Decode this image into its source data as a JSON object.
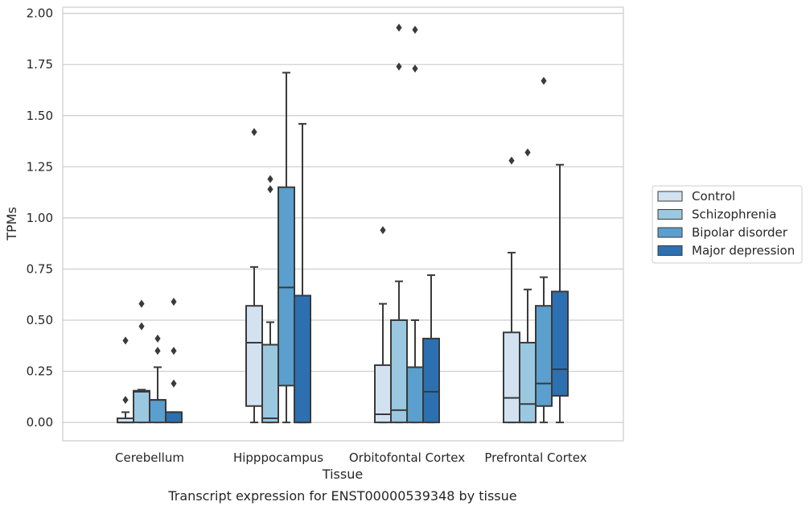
{
  "chart_data": {
    "type": "box",
    "title": "",
    "xlabel": "Tissue",
    "ylabel": "TPMs",
    "caption": "Transcript expression for ENST00000539348 by tissue",
    "ylim": [
      -0.09,
      2.03
    ],
    "yticks": [
      "0.00",
      "0.25",
      "0.50",
      "0.75",
      "1.00",
      "1.25",
      "1.50",
      "1.75",
      "2.00"
    ],
    "ytick_values": [
      0,
      0.25,
      0.5,
      0.75,
      1.0,
      1.25,
      1.5,
      1.75,
      2.0
    ],
    "grid": "horizontal",
    "legend_position": "right",
    "categories": [
      "Cerebellum",
      "Hipppocampus",
      "Orbitofontal Cortex",
      "Prefrontal Cortex"
    ],
    "series": [
      {
        "name": "Control",
        "color": "#d2e2f1",
        "boxes": [
          {
            "whisker_low": 0,
            "q1": 0,
            "median": 0.0,
            "q3": 0.02,
            "whisker_high": 0.05,
            "outliers": [
              0.11,
              0.4
            ]
          },
          {
            "whisker_low": 0,
            "q1": 0.08,
            "median": 0.39,
            "q3": 0.57,
            "whisker_high": 0.76,
            "outliers": [
              1.42
            ]
          },
          {
            "whisker_low": 0,
            "q1": 0,
            "median": 0.04,
            "q3": 0.28,
            "whisker_high": 0.58,
            "outliers": [
              0.94
            ]
          },
          {
            "whisker_low": 0,
            "q1": 0,
            "median": 0.12,
            "q3": 0.44,
            "whisker_high": 0.83,
            "outliers": [
              1.28
            ]
          }
        ]
      },
      {
        "name": "Schizophrenia",
        "color": "#9ac8e0",
        "boxes": [
          {
            "whisker_low": 0,
            "q1": 0,
            "median": 0.15,
            "q3": 0.155,
            "whisker_high": 0.16,
            "outliers": [
              0.47,
              0.58
            ]
          },
          {
            "whisker_low": 0,
            "q1": 0,
            "median": 0.02,
            "q3": 0.38,
            "whisker_high": 0.49,
            "outliers": [
              1.14,
              1.19
            ]
          },
          {
            "whisker_low": 0,
            "q1": 0,
            "median": 0.06,
            "q3": 0.5,
            "whisker_high": 0.69,
            "outliers": [
              1.74,
              1.93
            ]
          },
          {
            "whisker_low": 0,
            "q1": 0,
            "median": 0.09,
            "q3": 0.39,
            "whisker_high": 0.65,
            "outliers": [
              1.32
            ]
          }
        ]
      },
      {
        "name": "Bipolar disorder",
        "color": "#5a9fcd",
        "boxes": [
          {
            "whisker_low": 0,
            "q1": 0,
            "median": 0.11,
            "q3": 0.11,
            "whisker_high": 0.27,
            "outliers": [
              0.35,
              0.41
            ]
          },
          {
            "whisker_low": 0,
            "q1": 0.18,
            "median": 0.66,
            "q3": 1.15,
            "whisker_high": 1.71,
            "outliers": []
          },
          {
            "whisker_low": 0,
            "q1": 0,
            "median": 0.27,
            "q3": 0.27,
            "whisker_high": 0.5,
            "outliers": [
              1.73,
              1.92
            ]
          },
          {
            "whisker_low": 0,
            "q1": 0.08,
            "median": 0.19,
            "q3": 0.57,
            "whisker_high": 0.71,
            "outliers": [
              1.67
            ]
          }
        ]
      },
      {
        "name": "Major depression",
        "color": "#2c70b1",
        "boxes": [
          {
            "whisker_low": 0,
            "q1": 0,
            "median": 0.05,
            "q3": 0.05,
            "whisker_high": 0.05,
            "outliers": [
              0.19,
              0.35,
              0.59
            ]
          },
          {
            "whisker_low": 0,
            "q1": 0,
            "median": 0.0,
            "q3": 0.62,
            "whisker_high": 1.46,
            "outliers": []
          },
          {
            "whisker_low": 0,
            "q1": 0,
            "median": 0.15,
            "q3": 0.41,
            "whisker_high": 0.72,
            "outliers": []
          },
          {
            "whisker_low": 0,
            "q1": 0.13,
            "median": 0.26,
            "q3": 0.64,
            "whisker_high": 1.26,
            "outliers": []
          }
        ]
      }
    ]
  }
}
